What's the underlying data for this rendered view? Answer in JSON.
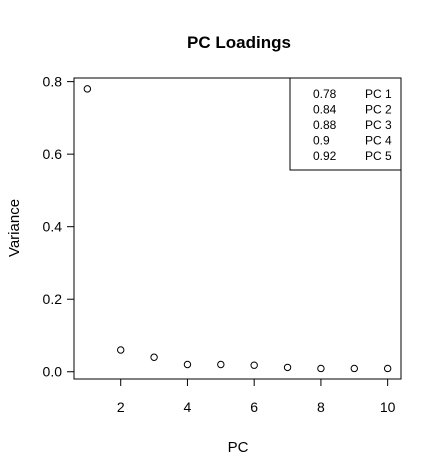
{
  "chart_data": {
    "type": "scatter",
    "title": "PC Loadings",
    "xlabel": "PC",
    "ylabel": "Variance",
    "x": [
      1,
      2,
      3,
      4,
      5,
      6,
      7,
      8,
      9,
      10
    ],
    "y": [
      0.78,
      0.06,
      0.04,
      0.02,
      0.02,
      0.018,
      0.012,
      0.009,
      0.009,
      0.009
    ],
    "xlim": [
      0.6,
      10.4
    ],
    "ylim": [
      -0.02,
      0.81
    ],
    "xticks": [
      "2",
      "4",
      "6",
      "8",
      "10"
    ],
    "yticks": [
      "0.0",
      "0.2",
      "0.4",
      "0.6",
      "0.8"
    ],
    "grid": false,
    "legend_position": "top-right",
    "legend": [
      {
        "value": "0.78",
        "label": "PC 1"
      },
      {
        "value": "0.84",
        "label": "PC 2"
      },
      {
        "value": "0.88",
        "label": "PC 3"
      },
      {
        "value": "0.9",
        "label": "PC 4"
      },
      {
        "value": "0.92",
        "label": "PC 5"
      }
    ]
  }
}
